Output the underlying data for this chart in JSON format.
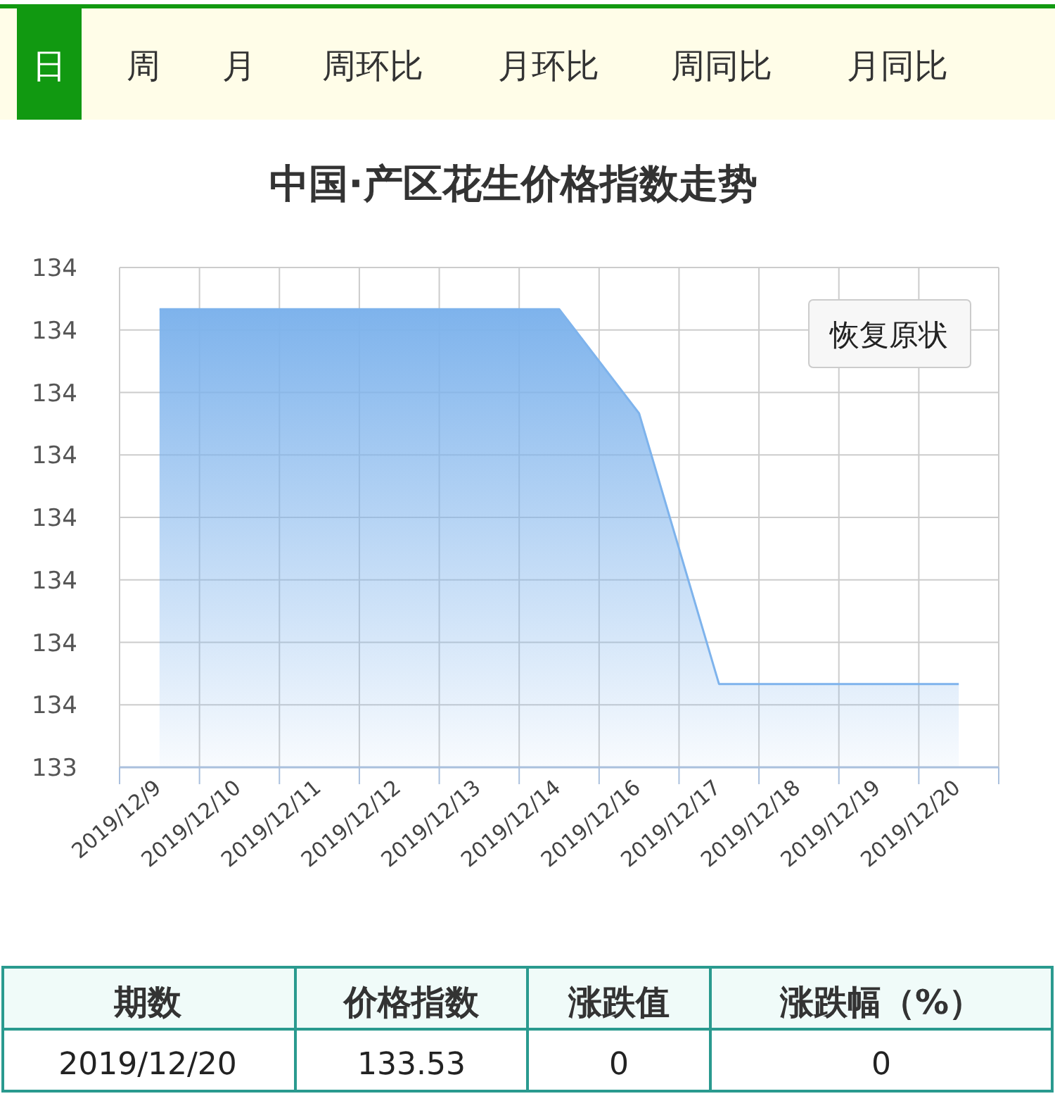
{
  "chart_data": {
    "type": "area",
    "title": "中国·产区花生价格指数走势",
    "categories": [
      "2019/12/9",
      "2019/12/10",
      "2019/12/11",
      "2019/12/12",
      "2019/12/13",
      "2019/12/14",
      "2019/12/16",
      "2019/12/17",
      "2019/12/18",
      "2019/12/19",
      "2019/12/20"
    ],
    "series": [
      {
        "color": "#7eb3ec",
        "values": [
          133.71,
          133.71,
          133.71,
          133.71,
          133.71,
          133.71,
          133.66,
          133.53,
          133.53,
          133.53,
          133.53
        ]
      }
    ],
    "ylim": [
      133.49,
      133.73
    ],
    "yticks": [
      {
        "value": 133.49,
        "label": "133"
      },
      {
        "value": 133.52,
        "label": "134"
      },
      {
        "value": 133.55,
        "label": "134"
      },
      {
        "value": 133.58,
        "label": "134"
      },
      {
        "value": 133.61,
        "label": "134"
      },
      {
        "value": 133.64,
        "label": "134"
      },
      {
        "value": 133.67,
        "label": "134"
      },
      {
        "value": 133.7,
        "label": "134"
      },
      {
        "value": 133.73,
        "label": "134"
      }
    ],
    "grid": true,
    "annotations": [
      "日",
      "周",
      "月",
      "周环比",
      "月环比",
      "周同比",
      "月同比",
      "恢复原状",
      "期数",
      "价格指数",
      "涨跌值",
      "涨跌幅（%）",
      "2019/12/20",
      "133.53",
      "0",
      "0"
    ]
  }
}
